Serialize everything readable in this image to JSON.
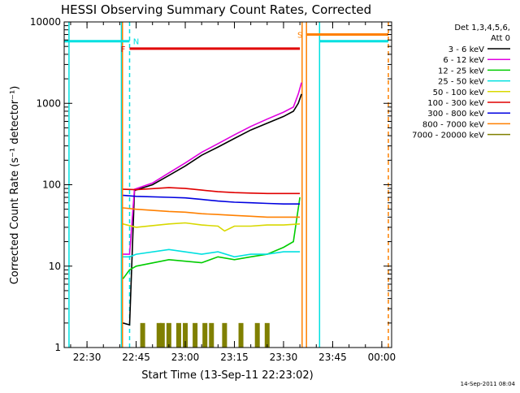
{
  "chart_data": {
    "type": "line",
    "title": "HESSI Observing Summary Count Rates, Corrected",
    "xlabel": "Start Time (13-Sep-11 22:23:02)",
    "ylabel": "Corrected Count Rate (s⁻¹ detector⁻¹)",
    "xlim": [
      "22:23:02",
      "00:03:00"
    ],
    "ylim": [
      1,
      10000
    ],
    "yscale": "log",
    "x_ticks": [
      "22:30",
      "22:45",
      "23:00",
      "23:15",
      "23:30",
      "23:45",
      "00:00"
    ],
    "y_ticks": [
      "1",
      "10",
      "100",
      "1000",
      "10000"
    ],
    "legend_title": "Det 1,3,4,5,6, Att 0",
    "legend_position": "right",
    "series": [
      {
        "name": "3 - 6 keV",
        "color": "#000000",
        "x": [
          "22:41:00",
          "22:43:00",
          "22:44:30",
          "22:50:00",
          "22:55:00",
          "23:00:00",
          "23:05:00",
          "23:10:00",
          "23:15:00",
          "23:20:00",
          "23:25:00",
          "23:30:00",
          "23:33:00",
          "23:34:30",
          "23:35:30"
        ],
        "y": [
          2,
          1.9,
          85,
          100,
          130,
          170,
          230,
          290,
          370,
          470,
          570,
          690,
          800,
          1000,
          1300
        ]
      },
      {
        "name": "6 - 12 keV",
        "color": "#e000e0",
        "x": [
          "22:41:00",
          "22:43:00",
          "22:44:30",
          "22:50:00",
          "22:55:00",
          "23:00:00",
          "23:05:00",
          "23:10:00",
          "23:15:00",
          "23:20:00",
          "23:25:00",
          "23:30:00",
          "23:33:00",
          "23:34:30",
          "23:35:30"
        ],
        "y": [
          14,
          14,
          88,
          105,
          140,
          185,
          250,
          320,
          410,
          520,
          640,
          780,
          900,
          1300,
          1800
        ]
      },
      {
        "name": "12 - 25 keV",
        "color": "#00cc00",
        "x": [
          "22:41:00",
          "22:43:00",
          "22:45:00",
          "22:55:00",
          "23:05:00",
          "23:10:00",
          "23:15:00",
          "23:20:00",
          "23:25:00",
          "23:30:00",
          "23:33:00",
          "23:35:00"
        ],
        "y": [
          7,
          9,
          10,
          12,
          11,
          13,
          12,
          13,
          14,
          17,
          20,
          70
        ]
      },
      {
        "name": "25 - 50 keV",
        "color": "#00e0e0",
        "x": [
          "22:41:00",
          "22:43:00",
          "22:45:00",
          "22:55:00",
          "23:05:00",
          "23:10:00",
          "23:15:00",
          "23:20:00",
          "23:25:00",
          "23:30:00",
          "23:35:00"
        ],
        "y": [
          13,
          13,
          14,
          16,
          14,
          15,
          13,
          14,
          14,
          15,
          15
        ]
      },
      {
        "name": "50 - 100 keV",
        "color": "#d8d800",
        "x": [
          "22:41:00",
          "22:45:00",
          "22:55:00",
          "23:00:00",
          "23:05:00",
          "23:10:00",
          "23:12:00",
          "23:15:00",
          "23:20:00",
          "23:25:00",
          "23:30:00",
          "23:35:00"
        ],
        "y": [
          33,
          30,
          33,
          34,
          32,
          31,
          27,
          31,
          31,
          32,
          32,
          33
        ]
      },
      {
        "name": "100 - 300 keV",
        "color": "#e00000",
        "x": [
          "22:41:00",
          "22:45:00",
          "22:55:00",
          "23:00:00",
          "23:05:00",
          "23:10:00",
          "23:15:00",
          "23:20:00",
          "23:25:00",
          "23:30:00",
          "23:35:00"
        ],
        "y": [
          88,
          87,
          92,
          90,
          86,
          82,
          80,
          79,
          78,
          78,
          78
        ]
      },
      {
        "name": "300 - 800 keV",
        "color": "#0000e0",
        "x": [
          "22:41:00",
          "22:45:00",
          "22:55:00",
          "23:00:00",
          "23:05:00",
          "23:10:00",
          "23:15:00",
          "23:20:00",
          "23:25:00",
          "23:30:00",
          "23:35:00"
        ],
        "y": [
          74,
          72,
          70,
          69,
          66,
          63,
          61,
          60,
          59,
          58,
          58
        ]
      },
      {
        "name": "800 - 7000 keV",
        "color": "#ff8000",
        "x": [
          "22:41:00",
          "22:45:00",
          "22:55:00",
          "23:00:00",
          "23:05:00",
          "23:10:00",
          "23:15:00",
          "23:20:00",
          "23:25:00",
          "23:30:00",
          "23:35:00"
        ],
        "y": [
          52,
          50,
          47,
          46,
          44,
          43,
          42,
          41,
          40,
          40,
          40
        ]
      },
      {
        "name": "7000 - 20000 keV",
        "color": "#808000",
        "x": [
          "22:47:00",
          "22:52:00",
          "22:53:00",
          "22:55:00",
          "22:58:00",
          "23:00:00",
          "23:03:00",
          "23:06:00",
          "23:08:00",
          "23:12:00",
          "23:17:00",
          "23:22:00",
          "23:25:00"
        ],
        "y": [
          2,
          2,
          2,
          2,
          2,
          2,
          2,
          2,
          2,
          2,
          2,
          2,
          2
        ]
      }
    ],
    "flags": [
      {
        "label": "",
        "color": "#00e0e0",
        "x": [
          "22:23:02",
          "22:43:00"
        ],
        "y": 5800
      },
      {
        "label": "N",
        "color": "#00e0e0",
        "x": [
          "22:43:00"
        ],
        "y": 5800
      },
      {
        "label": "F",
        "color": "#e00000",
        "x": [
          "22:43:00",
          "23:35:00"
        ],
        "y": 4700
      },
      {
        "label": "S",
        "color": "#ff8000",
        "x": [
          "23:37:00",
          "00:02:00"
        ],
        "y": 7000
      },
      {
        "label": "",
        "color": "#00e0e0",
        "x": [
          "23:41:00",
          "00:02:00"
        ],
        "y": 5800
      }
    ],
    "vlines": [
      {
        "x": "22:24:30",
        "color": "#00e0e0",
        "style": "solid"
      },
      {
        "x": "22:40:30",
        "color": "#00e0e0",
        "style": "solid"
      },
      {
        "x": "22:40:50",
        "color": "#ff8000",
        "style": "solid"
      },
      {
        "x": "22:43:00",
        "color": "#00e0e0",
        "style": "dashed"
      },
      {
        "x": "23:35:40",
        "color": "#ff8000",
        "style": "solid"
      },
      {
        "x": "23:37:00",
        "color": "#ff8000",
        "style": "solid"
      },
      {
        "x": "23:41:00",
        "color": "#00e0e0",
        "style": "solid"
      },
      {
        "x": "00:02:00",
        "color": "#ff8000",
        "style": "dashed"
      }
    ]
  },
  "footer": {
    "timestamp": "14-Sep-2011 08:04"
  }
}
